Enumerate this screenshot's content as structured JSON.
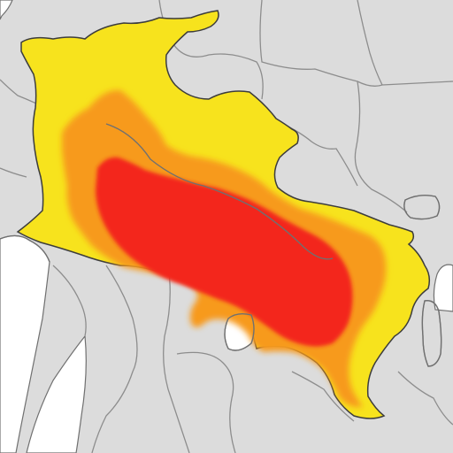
{
  "map": {
    "colors": {
      "background": "#ffffff",
      "land": "#dcdcdc",
      "border": "#8d8d8d",
      "coast": "#707070",
      "zone_low": "#f7e31d",
      "zone_medium": "#f79a1f",
      "zone_high": "#f3261d"
    },
    "zones": [
      {
        "name": "low-intensity-zone",
        "level": "low"
      },
      {
        "name": "medium-intensity-zone",
        "level": "medium"
      },
      {
        "name": "high-intensity-zone",
        "level": "high"
      }
    ]
  }
}
